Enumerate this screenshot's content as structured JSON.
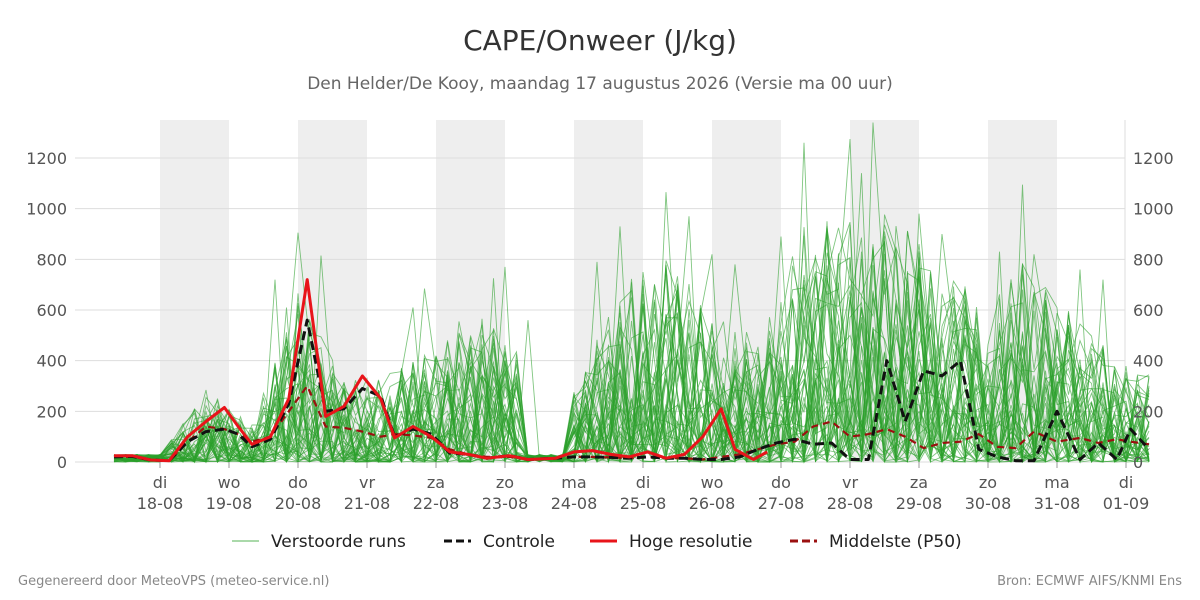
{
  "chart_data": {
    "type": "line",
    "title": "CAPE/Onweer (J/kg)",
    "subtitle": "Den Helder/De Kooy, maandag 17 augustus 2026 (Versie ma 00 uur)",
    "ylim": [
      0,
      1350
    ],
    "yticks": [
      0,
      200,
      400,
      600,
      800,
      1000,
      1200
    ],
    "x_start": 17.5,
    "x_end": 32.0,
    "weekend_bands": [
      [
        18.0,
        18.75
      ],
      [
        19.5,
        20.25
      ],
      [
        21.0,
        21.75
      ],
      [
        22.5,
        23.25
      ],
      [
        24.0,
        24.75
      ],
      [
        25.5,
        26.25
      ],
      [
        27.0,
        27.75
      ]
    ],
    "x_ticks": [
      {
        "x": 18.0,
        "day": "di",
        "date": "18-08"
      },
      {
        "x": 18.75,
        "day": "wo",
        "date": "19-08"
      },
      {
        "x": 19.5,
        "day": "do",
        "date": "20-08"
      },
      {
        "x": 20.25,
        "day": "vr",
        "date": "21-08"
      },
      {
        "x": 21.0,
        "day": "za",
        "date": "22-08"
      },
      {
        "x": 21.75,
        "day": "zo",
        "date": "23-08"
      },
      {
        "x": 22.5,
        "day": "ma",
        "date": "24-08"
      },
      {
        "x": 23.25,
        "day": "di",
        "date": "25-08"
      },
      {
        "x": 24.0,
        "day": "wo",
        "date": "26-08"
      },
      {
        "x": 24.75,
        "day": "do",
        "date": "27-08"
      },
      {
        "x": 25.5,
        "day": "vr",
        "date": "28-08"
      },
      {
        "x": 26.25,
        "day": "za",
        "date": "29-08"
      },
      {
        "x": 27.0,
        "day": "zo",
        "date": "30-08"
      },
      {
        "x": 27.75,
        "day": "ma",
        "date": "31-08"
      },
      {
        "x": 28.5,
        "day": "di",
        "date": "01-09"
      }
    ],
    "note_x": "x-values are in chart days (see tick labels); 0.75 day per calendar label step",
    "series": [
      {
        "name": "Hoge resolutie",
        "color": "#e8141a",
        "style": "solid",
        "points": [
          [
            17.5,
            25
          ],
          [
            17.7,
            25
          ],
          [
            17.9,
            8
          ],
          [
            18.1,
            5
          ],
          [
            18.3,
            100
          ],
          [
            18.5,
            160
          ],
          [
            18.7,
            215
          ],
          [
            18.85,
            140
          ],
          [
            19.0,
            70
          ],
          [
            19.2,
            100
          ],
          [
            19.4,
            250
          ],
          [
            19.6,
            720
          ],
          [
            19.8,
            180
          ],
          [
            20.0,
            220
          ],
          [
            20.2,
            340
          ],
          [
            20.4,
            250
          ],
          [
            20.55,
            95
          ],
          [
            20.75,
            140
          ],
          [
            20.95,
            100
          ],
          [
            21.15,
            40
          ],
          [
            21.35,
            30
          ],
          [
            21.55,
            15
          ],
          [
            21.8,
            25
          ],
          [
            22.0,
            10
          ],
          [
            22.3,
            15
          ],
          [
            22.5,
            40
          ],
          [
            22.7,
            45
          ],
          [
            22.9,
            30
          ],
          [
            23.1,
            20
          ],
          [
            23.3,
            40
          ],
          [
            23.5,
            15
          ],
          [
            23.7,
            30
          ],
          [
            23.9,
            100
          ],
          [
            24.1,
            210
          ],
          [
            24.25,
            50
          ],
          [
            24.45,
            10
          ],
          [
            24.6,
            40
          ]
        ]
      },
      {
        "name": "Controle",
        "color": "#111111",
        "style": "dashed",
        "points": [
          [
            17.5,
            20
          ],
          [
            17.7,
            22
          ],
          [
            17.9,
            8
          ],
          [
            18.1,
            5
          ],
          [
            18.3,
            80
          ],
          [
            18.5,
            120
          ],
          [
            18.7,
            130
          ],
          [
            18.85,
            110
          ],
          [
            19.0,
            60
          ],
          [
            19.2,
            90
          ],
          [
            19.4,
            230
          ],
          [
            19.6,
            560
          ],
          [
            19.8,
            200
          ],
          [
            20.0,
            210
          ],
          [
            20.2,
            290
          ],
          [
            20.4,
            260
          ],
          [
            20.55,
            100
          ],
          [
            20.75,
            130
          ],
          [
            20.95,
            110
          ],
          [
            21.15,
            35
          ],
          [
            21.35,
            30
          ],
          [
            21.55,
            15
          ],
          [
            21.8,
            25
          ],
          [
            22.0,
            10
          ],
          [
            22.3,
            15
          ],
          [
            22.5,
            20
          ],
          [
            22.7,
            20
          ],
          [
            22.9,
            18
          ],
          [
            23.1,
            15
          ],
          [
            23.3,
            20
          ],
          [
            23.5,
            15
          ],
          [
            23.7,
            15
          ],
          [
            23.9,
            10
          ],
          [
            24.1,
            10
          ],
          [
            24.3,
            20
          ],
          [
            24.5,
            50
          ],
          [
            24.7,
            75
          ],
          [
            24.9,
            90
          ],
          [
            25.1,
            70
          ],
          [
            25.3,
            75
          ],
          [
            25.5,
            10
          ],
          [
            25.7,
            10
          ],
          [
            25.9,
            400
          ],
          [
            26.1,
            160
          ],
          [
            26.3,
            360
          ],
          [
            26.5,
            340
          ],
          [
            26.7,
            400
          ],
          [
            26.9,
            50
          ],
          [
            27.1,
            20
          ],
          [
            27.3,
            5
          ],
          [
            27.5,
            5
          ],
          [
            27.75,
            200
          ],
          [
            28.0,
            10
          ],
          [
            28.2,
            75
          ],
          [
            28.4,
            10
          ],
          [
            28.55,
            130
          ],
          [
            28.75,
            50
          ]
        ]
      },
      {
        "name": "Middelste (P50)",
        "color": "#9b1010",
        "style": "dashed",
        "points": [
          [
            17.5,
            20
          ],
          [
            17.7,
            20
          ],
          [
            17.9,
            8
          ],
          [
            18.1,
            5
          ],
          [
            18.3,
            80
          ],
          [
            18.5,
            140
          ],
          [
            18.7,
            130
          ],
          [
            18.85,
            110
          ],
          [
            19.0,
            80
          ],
          [
            19.2,
            100
          ],
          [
            19.4,
            200
          ],
          [
            19.6,
            300
          ],
          [
            19.8,
            140
          ],
          [
            20.0,
            135
          ],
          [
            20.2,
            120
          ],
          [
            20.4,
            100
          ],
          [
            20.55,
            110
          ],
          [
            20.75,
            105
          ],
          [
            20.95,
            95
          ],
          [
            21.15,
            50
          ],
          [
            21.35,
            30
          ],
          [
            21.55,
            20
          ],
          [
            21.8,
            20
          ],
          [
            22.0,
            10
          ],
          [
            22.3,
            15
          ],
          [
            22.5,
            20
          ],
          [
            22.7,
            20
          ],
          [
            22.9,
            18
          ],
          [
            23.1,
            15
          ],
          [
            23.3,
            20
          ],
          [
            23.5,
            15
          ],
          [
            23.7,
            15
          ],
          [
            23.9,
            10
          ],
          [
            24.1,
            20
          ],
          [
            24.3,
            30
          ],
          [
            24.5,
            50
          ],
          [
            24.7,
            70
          ],
          [
            24.9,
            80
          ],
          [
            25.1,
            140
          ],
          [
            25.3,
            160
          ],
          [
            25.5,
            100
          ],
          [
            25.7,
            110
          ],
          [
            25.9,
            130
          ],
          [
            26.1,
            100
          ],
          [
            26.3,
            55
          ],
          [
            26.5,
            75
          ],
          [
            26.7,
            80
          ],
          [
            26.9,
            110
          ],
          [
            27.1,
            60
          ],
          [
            27.3,
            55
          ],
          [
            27.5,
            120
          ],
          [
            27.75,
            80
          ],
          [
            28.0,
            95
          ],
          [
            28.2,
            75
          ],
          [
            28.4,
            90
          ],
          [
            28.55,
            80
          ],
          [
            28.75,
            70
          ]
        ]
      }
    ],
    "ensemble": {
      "name": "Verstoorde runs",
      "color": "#2ca02c",
      "count": 50,
      "peaks": [
        [
          19.55,
          905
        ],
        [
          19.7,
          815
        ],
        [
          19.25,
          720
        ],
        [
          19.35,
          610
        ],
        [
          20.7,
          610
        ],
        [
          20.85,
          685
        ],
        [
          21.3,
          555
        ],
        [
          21.7,
          770
        ],
        [
          21.6,
          725
        ],
        [
          22.0,
          560
        ],
        [
          23.0,
          930
        ],
        [
          22.8,
          790
        ],
        [
          23.2,
          750
        ],
        [
          23.55,
          1065
        ],
        [
          23.8,
          970
        ],
        [
          23.95,
          820
        ],
        [
          24.3,
          780
        ],
        [
          24.75,
          890
        ],
        [
          25.0,
          1260
        ],
        [
          25.2,
          950
        ],
        [
          25.45,
          1275
        ],
        [
          25.6,
          1140
        ],
        [
          25.75,
          1340
        ],
        [
          25.9,
          910
        ],
        [
          26.25,
          980
        ],
        [
          26.55,
          900
        ],
        [
          27.1,
          830
        ],
        [
          27.35,
          1095
        ],
        [
          27.6,
          640
        ],
        [
          28.0,
          760
        ],
        [
          28.2,
          720
        ]
      ],
      "envelope": [
        [
          17.5,
          40
        ],
        [
          18.0,
          30
        ],
        [
          18.5,
          380
        ],
        [
          19.0,
          200
        ],
        [
          19.5,
          900
        ],
        [
          20.0,
          440
        ],
        [
          20.5,
          470
        ],
        [
          21.0,
          600
        ],
        [
          21.5,
          770
        ],
        [
          22.0,
          560
        ],
        [
          22.5,
          370
        ],
        [
          23.0,
          930
        ],
        [
          23.5,
          1065
        ],
        [
          24.0,
          820
        ],
        [
          24.5,
          640
        ],
        [
          25.0,
          1260
        ],
        [
          25.5,
          1275
        ],
        [
          26.0,
          1340
        ],
        [
          26.5,
          980
        ],
        [
          27.0,
          900
        ],
        [
          27.5,
          1095
        ],
        [
          28.0,
          760
        ],
        [
          28.5,
          520
        ]
      ]
    }
  },
  "legend": {
    "items": [
      {
        "label": "Verstoorde runs",
        "color": "#2ca02c",
        "style": "thin"
      },
      {
        "label": "Controle",
        "color": "#111111",
        "style": "dashed"
      },
      {
        "label": "Hoge resolutie",
        "color": "#e8141a",
        "style": "solid"
      },
      {
        "label": "Middelste (P50)",
        "color": "#9b1010",
        "style": "dashed"
      }
    ]
  },
  "footer": {
    "left": "Gegenereerd door MeteoVPS (meteo-service.nl)",
    "right": "Bron: ECMWF AIFS/KNMI Ens"
  }
}
